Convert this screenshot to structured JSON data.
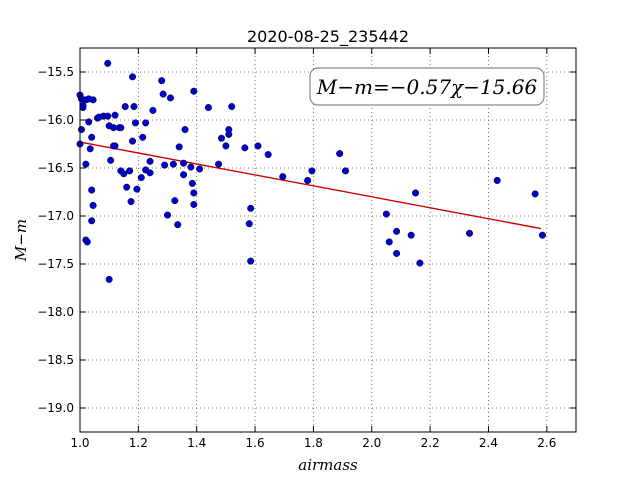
{
  "chart_data": {
    "type": "scatter",
    "title": "2020-08-25_235442",
    "xlabel": "airmass",
    "ylabel": "M−m",
    "xlim": [
      1.0,
      2.7
    ],
    "ylim": [
      -19.25,
      -15.25
    ],
    "y_inverted": true,
    "grid": true,
    "xticks": [
      1.0,
      1.2,
      1.4,
      1.6,
      1.8,
      2.0,
      2.2,
      2.4,
      2.6
    ],
    "xtick_labels": [
      "1.0",
      "1.2",
      "1.4",
      "1.6",
      "1.8",
      "2.0",
      "2.2",
      "2.4",
      "2.6"
    ],
    "yticks": [
      -15.5,
      -16.0,
      -16.5,
      -17.0,
      -17.5,
      -18.0,
      -18.5,
      -19.0
    ],
    "ytick_labels": [
      "−15.5",
      "−16.0",
      "−16.5",
      "−17.0",
      "−17.5",
      "−18.0",
      "−18.5",
      "−19.0"
    ],
    "annotation": "M−m=−0.57χ−15.66",
    "fit": {
      "slope": -0.57,
      "intercept": -15.66,
      "x_range": [
        1.0,
        2.58
      ],
      "color": "#cc0000"
    },
    "point_color": "#0000cc",
    "points": [
      [
        1.0,
        -15.74
      ],
      [
        1.005,
        -15.78
      ],
      [
        1.01,
        -15.87
      ],
      [
        1.01,
        -15.85
      ],
      [
        1.005,
        -16.1
      ],
      [
        1.0,
        -16.25
      ],
      [
        1.02,
        -15.79
      ],
      [
        1.03,
        -15.78
      ],
      [
        1.045,
        -15.79
      ],
      [
        1.03,
        -16.02
      ],
      [
        1.035,
        -16.3
      ],
      [
        1.04,
        -16.18
      ],
      [
        1.02,
        -16.46
      ],
      [
        1.04,
        -16.73
      ],
      [
        1.045,
        -16.89
      ],
      [
        1.04,
        -17.05
      ],
      [
        1.02,
        -17.25
      ],
      [
        1.025,
        -17.27
      ],
      [
        1.06,
        -15.98
      ],
      [
        1.065,
        -15.97
      ],
      [
        1.08,
        -15.96
      ],
      [
        1.095,
        -15.96
      ],
      [
        1.095,
        -15.41
      ],
      [
        1.1,
        -16.06
      ],
      [
        1.105,
        -16.42
      ],
      [
        1.1,
        -17.66
      ],
      [
        1.115,
        -16.08
      ],
      [
        1.115,
        -16.27
      ],
      [
        1.12,
        -16.27
      ],
      [
        1.12,
        -15.95
      ],
      [
        1.135,
        -16.08
      ],
      [
        1.14,
        -16.08
      ],
      [
        1.14,
        -16.53
      ],
      [
        1.15,
        -16.56
      ],
      [
        1.155,
        -15.86
      ],
      [
        1.16,
        -16.7
      ],
      [
        1.17,
        -16.53
      ],
      [
        1.175,
        -16.85
      ],
      [
        1.18,
        -15.55
      ],
      [
        1.18,
        -16.22
      ],
      [
        1.185,
        -15.86
      ],
      [
        1.19,
        -16.03
      ],
      [
        1.195,
        -16.72
      ],
      [
        1.21,
        -16.6
      ],
      [
        1.215,
        -16.18
      ],
      [
        1.225,
        -16.03
      ],
      [
        1.225,
        -16.52
      ],
      [
        1.24,
        -16.43
      ],
      [
        1.24,
        -16.55
      ],
      [
        1.25,
        -15.9
      ],
      [
        1.28,
        -15.59
      ],
      [
        1.285,
        -15.73
      ],
      [
        1.29,
        -16.47
      ],
      [
        1.3,
        -16.99
      ],
      [
        1.31,
        -15.77
      ],
      [
        1.32,
        -16.46
      ],
      [
        1.325,
        -16.84
      ],
      [
        1.335,
        -17.09
      ],
      [
        1.34,
        -16.28
      ],
      [
        1.355,
        -16.45
      ],
      [
        1.355,
        -16.57
      ],
      [
        1.36,
        -16.1
      ],
      [
        1.38,
        -16.49
      ],
      [
        1.385,
        -16.66
      ],
      [
        1.39,
        -16.88
      ],
      [
        1.39,
        -16.76
      ],
      [
        1.39,
        -15.7
      ],
      [
        1.41,
        -16.51
      ],
      [
        1.44,
        -15.87
      ],
      [
        1.475,
        -16.46
      ],
      [
        1.485,
        -16.19
      ],
      [
        1.5,
        -16.27
      ],
      [
        1.51,
        -16.15
      ],
      [
        1.51,
        -16.1
      ],
      [
        1.52,
        -15.86
      ],
      [
        1.565,
        -16.29
      ],
      [
        1.585,
        -16.92
      ],
      [
        1.58,
        -17.08
      ],
      [
        1.585,
        -17.47
      ],
      [
        1.61,
        -16.27
      ],
      [
        1.645,
        -16.36
      ],
      [
        1.695,
        -16.59
      ],
      [
        1.78,
        -16.63
      ],
      [
        1.795,
        -16.53
      ],
      [
        1.89,
        -16.35
      ],
      [
        1.91,
        -16.53
      ],
      [
        2.05,
        -16.98
      ],
      [
        2.06,
        -17.27
      ],
      [
        2.085,
        -17.16
      ],
      [
        2.085,
        -17.39
      ],
      [
        2.135,
        -17.2
      ],
      [
        2.15,
        -16.76
      ],
      [
        2.165,
        -17.49
      ],
      [
        2.335,
        -17.18
      ],
      [
        2.43,
        -16.63
      ],
      [
        2.56,
        -16.77
      ],
      [
        2.585,
        -17.2
      ]
    ]
  }
}
